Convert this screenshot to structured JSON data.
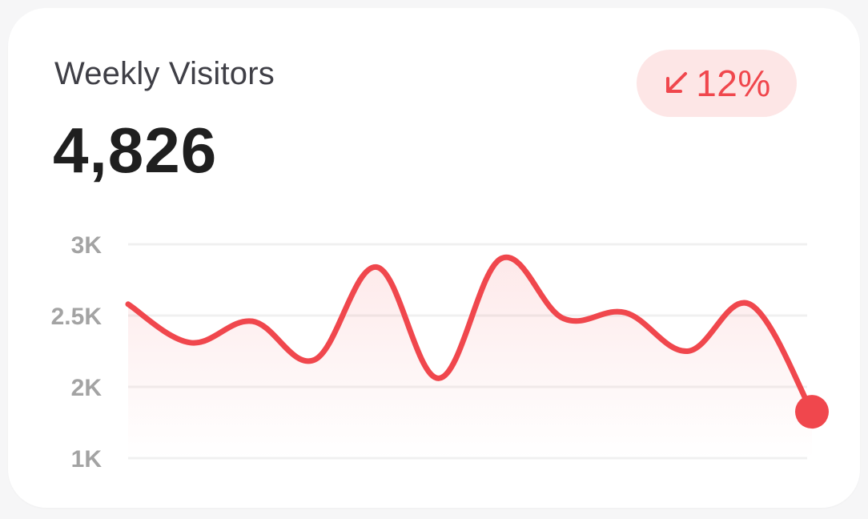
{
  "widget": {
    "title": "Weekly Visitors",
    "value": "4,826",
    "change": {
      "icon": "arrow-down-left-icon",
      "text": "12%",
      "direction": "down"
    }
  },
  "colors": {
    "accent": "#f0474d",
    "badge_bg": "#fde6e6",
    "grid": "#f0f0f0",
    "tick": "#a3a3a3"
  },
  "chart_data": {
    "type": "area",
    "title": "",
    "xlabel": "",
    "ylabel": "",
    "y_scale": "piecewise",
    "yticks": [
      {
        "label": "3K",
        "value": 3000
      },
      {
        "label": "2.5K",
        "value": 2500
      },
      {
        "label": "2K",
        "value": 2000
      },
      {
        "label": "1K",
        "value": 1000
      }
    ],
    "ylim": [
      1000,
      3000
    ],
    "grid": true,
    "legend": "none",
    "series": [
      {
        "values": [
          2580,
          2310,
          2460,
          2190,
          2840,
          2060,
          2900,
          2480,
          2520,
          2250,
          2580,
          1650
        ]
      }
    ],
    "highlight_last_point": true
  }
}
